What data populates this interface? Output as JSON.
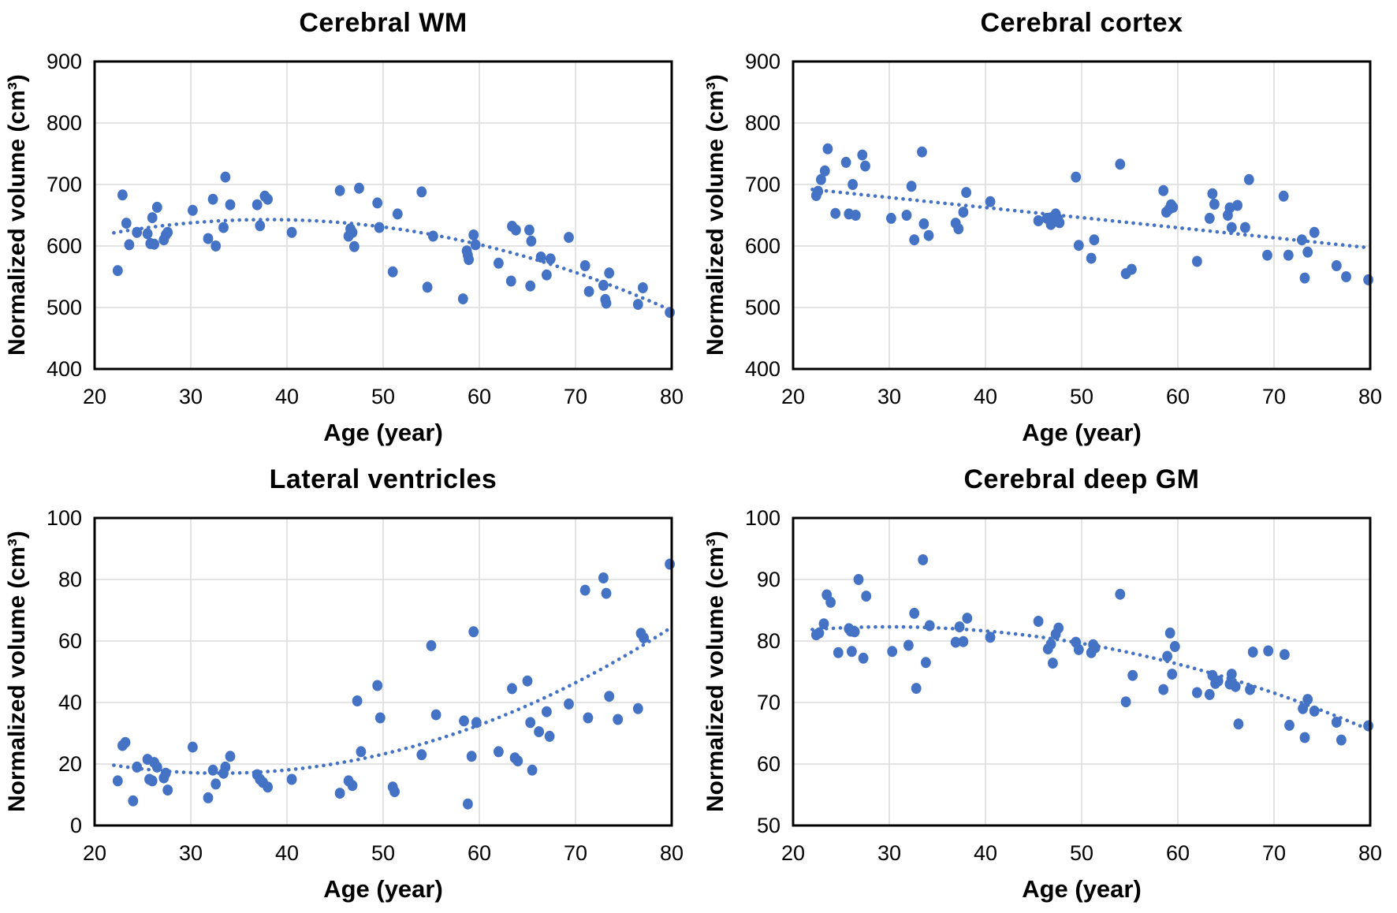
{
  "figure": {
    "background": "#ffffff",
    "style": {
      "point_color": "#4472C4",
      "trend_color": "#4472C4",
      "grid_color": "#DCDCDC",
      "border_color": "#000000",
      "text_color": "#000000"
    }
  },
  "chart_data": [
    {
      "type": "scatter",
      "title": "Cerebral WM",
      "xlabel": "Age (year)",
      "ylabel": "Normalized volume (cm³)",
      "xlim": [
        20,
        80
      ],
      "ylim": [
        400,
        900
      ],
      "xticks": [
        20,
        30,
        40,
        50,
        60,
        70,
        80
      ],
      "yticks": [
        400,
        500,
        600,
        700,
        800,
        900
      ],
      "grid": true,
      "legend": "none",
      "trend": {
        "kind": "quadratic",
        "coefficients": [
          521.8,
          6.376,
          -0.0839
        ],
        "x_range": [
          22,
          80
        ],
        "line_style": "dotted"
      },
      "points": [
        [
          22.4,
          560
        ],
        [
          22.9,
          683
        ],
        [
          23.3,
          637
        ],
        [
          23.6,
          602
        ],
        [
          24.4,
          622
        ],
        [
          25.5,
          620
        ],
        [
          25.8,
          604
        ],
        [
          26,
          646
        ],
        [
          26.2,
          603
        ],
        [
          26.5,
          663
        ],
        [
          27.2,
          610
        ],
        [
          27.4,
          618
        ],
        [
          27.6,
          622
        ],
        [
          30.2,
          658
        ],
        [
          31.8,
          612
        ],
        [
          32.3,
          676
        ],
        [
          32.6,
          600
        ],
        [
          33.4,
          630
        ],
        [
          33.6,
          712
        ],
        [
          34.1,
          667
        ],
        [
          36.9,
          667
        ],
        [
          37.2,
          633
        ],
        [
          37.7,
          681
        ],
        [
          38,
          676
        ],
        [
          40.5,
          622
        ],
        [
          45.5,
          690
        ],
        [
          46.4,
          616
        ],
        [
          46.6,
          628
        ],
        [
          46.8,
          622
        ],
        [
          47,
          599
        ],
        [
          47.5,
          694
        ],
        [
          49.4,
          670
        ],
        [
          49.6,
          630
        ],
        [
          51,
          558
        ],
        [
          51.5,
          652
        ],
        [
          54,
          688
        ],
        [
          54.6,
          533
        ],
        [
          55.2,
          616
        ],
        [
          58.3,
          514
        ],
        [
          58.7,
          592
        ],
        [
          58.8,
          585
        ],
        [
          58.9,
          578
        ],
        [
          59.4,
          618
        ],
        [
          59.6,
          602
        ],
        [
          62,
          572
        ],
        [
          63.3,
          543
        ],
        [
          63.4,
          632
        ],
        [
          63.8,
          626
        ],
        [
          65.2,
          626
        ],
        [
          65.3,
          535
        ],
        [
          65.4,
          608
        ],
        [
          66.4,
          582
        ],
        [
          67,
          553
        ],
        [
          67.4,
          579
        ],
        [
          69.3,
          614
        ],
        [
          71,
          568
        ],
        [
          71.4,
          526
        ],
        [
          72.9,
          536
        ],
        [
          73.1,
          513
        ],
        [
          73.2,
          507
        ],
        [
          73.5,
          556
        ],
        [
          76.5,
          505
        ],
        [
          77,
          532
        ],
        [
          79.8,
          492
        ]
      ]
    },
    {
      "type": "scatter",
      "title": "Cerebral cortex",
      "xlabel": "Age (year)",
      "ylabel": "Normalized volume (cm³)",
      "xlim": [
        20,
        80
      ],
      "ylim": [
        400,
        900
      ],
      "xticks": [
        20,
        30,
        40,
        50,
        60,
        70,
        80
      ],
      "yticks": [
        400,
        500,
        600,
        700,
        800,
        900
      ],
      "grid": true,
      "legend": "none",
      "trend": {
        "kind": "linear",
        "coefficients": [
          728.0,
          -1.638,
          0
        ],
        "x_range": [
          22,
          80
        ],
        "line_style": "dotted"
      },
      "points": [
        [
          22.4,
          682
        ],
        [
          22.6,
          689
        ],
        [
          22.9,
          708
        ],
        [
          23.3,
          722
        ],
        [
          23.6,
          758
        ],
        [
          24.4,
          653
        ],
        [
          25.5,
          736
        ],
        [
          25.8,
          652
        ],
        [
          26.2,
          700
        ],
        [
          26.5,
          650
        ],
        [
          27.2,
          748
        ],
        [
          27.5,
          730
        ],
        [
          30.2,
          645
        ],
        [
          31.8,
          650
        ],
        [
          32.3,
          697
        ],
        [
          32.6,
          610
        ],
        [
          33.4,
          753
        ],
        [
          33.6,
          636
        ],
        [
          34.1,
          617
        ],
        [
          36.9,
          637
        ],
        [
          37.2,
          628
        ],
        [
          37.7,
          655
        ],
        [
          38,
          687
        ],
        [
          40.5,
          672
        ],
        [
          45.5,
          641
        ],
        [
          46.4,
          645
        ],
        [
          46.8,
          635
        ],
        [
          47.1,
          648
        ],
        [
          47.3,
          652
        ],
        [
          47.5,
          645
        ],
        [
          47.7,
          638
        ],
        [
          49.4,
          712
        ],
        [
          49.7,
          601
        ],
        [
          51,
          580
        ],
        [
          51.3,
          610
        ],
        [
          54,
          733
        ],
        [
          54.6,
          555
        ],
        [
          55.2,
          562
        ],
        [
          58.5,
          690
        ],
        [
          58.8,
          655
        ],
        [
          59.1,
          660
        ],
        [
          59.3,
          667
        ],
        [
          59.5,
          663
        ],
        [
          62,
          575
        ],
        [
          63.3,
          645
        ],
        [
          63.6,
          685
        ],
        [
          63.8,
          668
        ],
        [
          65.2,
          650
        ],
        [
          65.4,
          662
        ],
        [
          65.6,
          630
        ],
        [
          66.2,
          666
        ],
        [
          67,
          630
        ],
        [
          67.4,
          708
        ],
        [
          69.3,
          585
        ],
        [
          71,
          681
        ],
        [
          71.5,
          585
        ],
        [
          72.9,
          610
        ],
        [
          73.2,
          548
        ],
        [
          73.5,
          590
        ],
        [
          74.2,
          622
        ],
        [
          76.5,
          568
        ],
        [
          77.5,
          550
        ],
        [
          79.8,
          545
        ]
      ]
    },
    {
      "type": "scatter",
      "title": "Lateral ventricles",
      "xlabel": "Age (year)",
      "ylabel": "Normalized volume (cm³)",
      "xlim": [
        20,
        80
      ],
      "ylim": [
        0,
        100
      ],
      "xticks": [
        20,
        30,
        40,
        50,
        60,
        70,
        80
      ],
      "yticks": [
        0,
        20,
        40,
        60,
        80,
        100
      ],
      "grid": true,
      "legend": "none",
      "trend": {
        "kind": "quadratic",
        "coefficients": [
          40.41,
          -1.419,
          0.0215
        ],
        "x_range": [
          22,
          80
        ],
        "line_style": "dotted"
      },
      "points": [
        [
          22.4,
          14.5
        ],
        [
          22.9,
          26
        ],
        [
          23.2,
          27
        ],
        [
          24,
          8
        ],
        [
          24.4,
          19
        ],
        [
          25.5,
          21.5
        ],
        [
          25.7,
          15
        ],
        [
          26,
          14.5
        ],
        [
          26.2,
          20.5
        ],
        [
          26.5,
          19
        ],
        [
          27.2,
          15.5
        ],
        [
          27.4,
          17
        ],
        [
          27.6,
          11.5
        ],
        [
          30.2,
          25.5
        ],
        [
          31.8,
          9
        ],
        [
          32.3,
          18
        ],
        [
          32.6,
          13.5
        ],
        [
          33.4,
          17
        ],
        [
          33.6,
          19
        ],
        [
          34.1,
          22.5
        ],
        [
          36.9,
          16.5
        ],
        [
          37.2,
          15
        ],
        [
          37.5,
          14
        ],
        [
          38,
          12.5
        ],
        [
          40.5,
          15
        ],
        [
          45.5,
          10.5
        ],
        [
          46.4,
          14.5
        ],
        [
          46.8,
          13
        ],
        [
          47.3,
          40.5
        ],
        [
          47.7,
          24
        ],
        [
          49.4,
          45.5
        ],
        [
          49.7,
          35
        ],
        [
          51,
          12.5
        ],
        [
          51.2,
          11
        ],
        [
          54,
          23
        ],
        [
          55,
          58.5
        ],
        [
          55.5,
          36
        ],
        [
          58.4,
          34
        ],
        [
          58.8,
          7
        ],
        [
          59.2,
          22.5
        ],
        [
          59.4,
          63
        ],
        [
          59.7,
          33.5
        ],
        [
          62,
          24
        ],
        [
          63.4,
          44.5
        ],
        [
          63.7,
          22
        ],
        [
          64,
          21
        ],
        [
          65,
          47
        ],
        [
          65.3,
          33.5
        ],
        [
          65.5,
          18
        ],
        [
          66.2,
          30.5
        ],
        [
          67,
          37
        ],
        [
          67.3,
          29
        ],
        [
          69.3,
          39.5
        ],
        [
          71,
          76.5
        ],
        [
          71.3,
          35
        ],
        [
          72.9,
          80.5
        ],
        [
          73.2,
          75.5
        ],
        [
          73.5,
          42
        ],
        [
          74.4,
          34.5
        ],
        [
          76.5,
          38
        ],
        [
          76.8,
          62.5
        ],
        [
          77.1,
          61
        ],
        [
          79.8,
          85
        ]
      ]
    },
    {
      "type": "scatter",
      "title": "Cerebral deep GM",
      "xlabel": "Age (year)",
      "ylabel": "Normalized volume (cm³)",
      "xlim": [
        20,
        80
      ],
      "ylim": [
        50,
        100
      ],
      "xticks": [
        20,
        30,
        40,
        50,
        60,
        70,
        80
      ],
      "yticks": [
        50,
        60,
        70,
        80,
        90,
        100
      ],
      "grid": true,
      "legend": "none",
      "trend": {
        "kind": "quadratic",
        "coefficients": [
          76.25,
          0.4032,
          -0.00672
        ],
        "x_range": [
          22,
          80
        ],
        "line_style": "dotted"
      },
      "points": [
        [
          22.4,
          81
        ],
        [
          22.7,
          81.3
        ],
        [
          23.2,
          82.8
        ],
        [
          23.5,
          87.5
        ],
        [
          23.9,
          86.3
        ],
        [
          24.7,
          78.1
        ],
        [
          25.8,
          82
        ],
        [
          26,
          81.6
        ],
        [
          26.1,
          78.3
        ],
        [
          26.4,
          81.5
        ],
        [
          26.8,
          90
        ],
        [
          27.3,
          77.2
        ],
        [
          27.6,
          87.3
        ],
        [
          30.3,
          78.3
        ],
        [
          32,
          79.3
        ],
        [
          32.6,
          84.5
        ],
        [
          32.8,
          72.3
        ],
        [
          33.5,
          93.2
        ],
        [
          33.8,
          76.5
        ],
        [
          34.2,
          82.5
        ],
        [
          36.9,
          79.8
        ],
        [
          37.3,
          82.3
        ],
        [
          37.7,
          79.9
        ],
        [
          38.1,
          83.7
        ],
        [
          40.5,
          80.6
        ],
        [
          45.5,
          83.2
        ],
        [
          46.5,
          78.7
        ],
        [
          46.8,
          79.5
        ],
        [
          47,
          76.4
        ],
        [
          47.3,
          81.1
        ],
        [
          47.6,
          82.1
        ],
        [
          49.4,
          79.8
        ],
        [
          49.7,
          78.6
        ],
        [
          51,
          78.1
        ],
        [
          51.2,
          79.4
        ],
        [
          51.4,
          78.9
        ],
        [
          54,
          87.6
        ],
        [
          54.6,
          70.1
        ],
        [
          55.3,
          74.4
        ],
        [
          58.5,
          72.1
        ],
        [
          58.9,
          77.5
        ],
        [
          59.2,
          81.3
        ],
        [
          59.4,
          74.6
        ],
        [
          59.7,
          79.1
        ],
        [
          62,
          71.6
        ],
        [
          63.3,
          71.3
        ],
        [
          63.6,
          74.4
        ],
        [
          63.9,
          73.1
        ],
        [
          64.2,
          73.5
        ],
        [
          65.4,
          73
        ],
        [
          65.6,
          74.6
        ],
        [
          66,
          72.6
        ],
        [
          66.3,
          66.5
        ],
        [
          67.5,
          72.1
        ],
        [
          67.8,
          78.2
        ],
        [
          69.4,
          78.4
        ],
        [
          71.1,
          77.8
        ],
        [
          71.6,
          66.3
        ],
        [
          73,
          69
        ],
        [
          73.2,
          64.3
        ],
        [
          73.5,
          70.5
        ],
        [
          74.2,
          68.6
        ],
        [
          76.5,
          66.8
        ],
        [
          77,
          63.9
        ],
        [
          79.8,
          66.2
        ]
      ]
    }
  ]
}
